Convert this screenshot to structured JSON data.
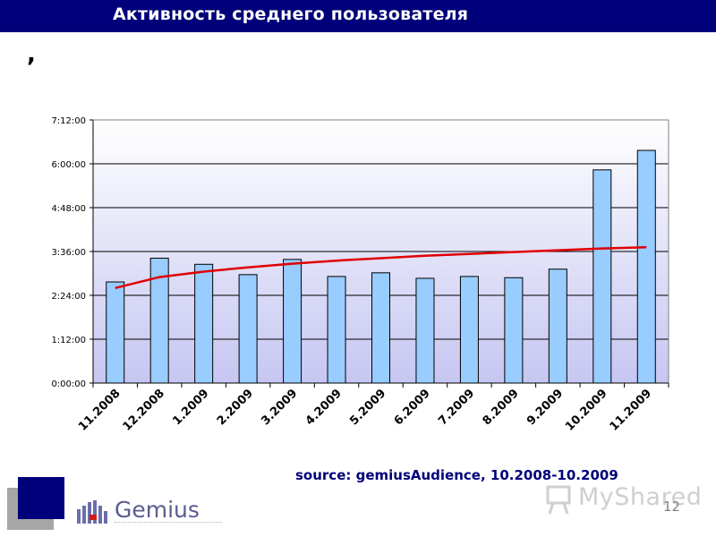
{
  "slide": {
    "title": "Активность среднего пользователя",
    "subtitle_mark": ",",
    "source": "source: gemiusAudience, 10.2008-10.2009",
    "page_number": "12",
    "logo_text": "Gemius",
    "watermark_text": "MyShared"
  },
  "colors": {
    "title_bar": "#00007a",
    "bar_fill": "#99ccff",
    "bar_stroke": "#000000",
    "trend_line": "#e00000",
    "plot_bg_top": "#ffffff",
    "plot_bg_bottom": "#c6c6f2"
  },
  "chart_data": {
    "type": "bar",
    "title": "",
    "xlabel": "",
    "ylabel": "",
    "categories": [
      "11.2008",
      "12.2008",
      "1.2009",
      "2.2009",
      "3.2009",
      "4.2009",
      "5.2009",
      "6.2009",
      "7.2009",
      "8.2009",
      "9.2009",
      "10.2009",
      "11.2009"
    ],
    "values": [
      "2:46:00",
      "3:25:00",
      "3:15:00",
      "2:58:00",
      "3:23:00",
      "2:55:00",
      "3:01:00",
      "2:52:00",
      "2:55:00",
      "2:53:00",
      "3:07:00",
      "5:50:00",
      "6:22:00"
    ],
    "trendline": {
      "type": "logarithmic",
      "values": [
        "2:36:00",
        "2:54:00",
        "3:03:00",
        "3:10:00",
        "3:16:00",
        "3:21:00",
        "3:25:00",
        "3:29:00",
        "3:32:00",
        "3:35:00",
        "3:38:00",
        "3:41:00",
        "3:43:00"
      ]
    },
    "y_ticks": [
      "0:00:00",
      "1:12:00",
      "2:24:00",
      "3:36:00",
      "4:48:00",
      "6:00:00",
      "7:12:00"
    ],
    "ylim": [
      "0:00:00",
      "7:12:00"
    ],
    "grid": true,
    "legend": "none"
  }
}
